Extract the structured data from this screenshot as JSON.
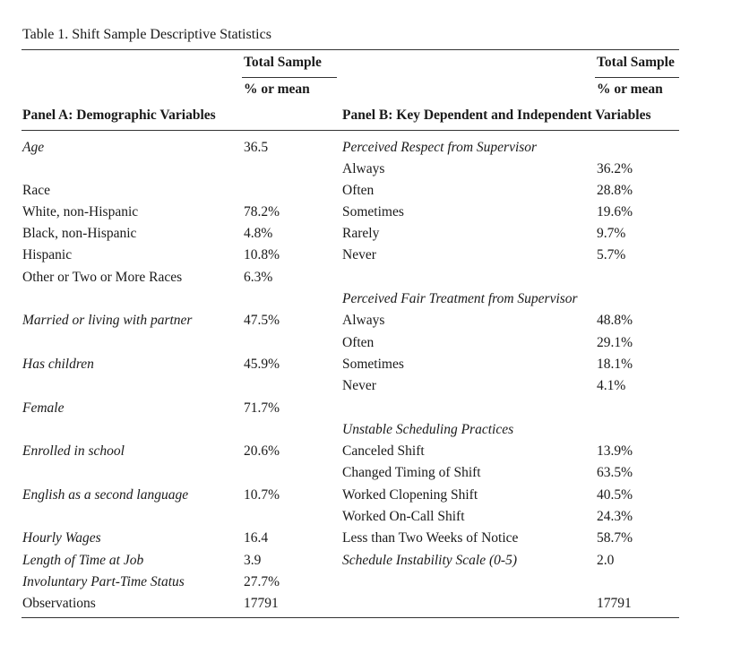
{
  "caption": "Table 1. Shift Sample Descriptive Statistics",
  "header": {
    "total_sample_left": "Total Sample",
    "pct_or_mean_left": "% or mean",
    "total_sample_right": "Total Sample",
    "pct_or_mean_right": "% or mean"
  },
  "panel_a": {
    "title": "Panel A: Demographic Variables",
    "rows": [
      {
        "label": "Age",
        "value": "36.5",
        "italic": true
      },
      {
        "label": "Race",
        "value": "",
        "italic": false
      },
      {
        "label": "White, non-Hispanic",
        "value": "78.2%",
        "italic": false
      },
      {
        "label": "Black, non-Hispanic",
        "value": "4.8%",
        "italic": false
      },
      {
        "label": "Hispanic",
        "value": "10.8%",
        "italic": false
      },
      {
        "label": "Other or Two or More Races",
        "value": "6.3%",
        "italic": false
      },
      {
        "label": "Married or living with partner",
        "value": "47.5%",
        "italic": true
      },
      {
        "label": "Has children",
        "value": "45.9%",
        "italic": true
      },
      {
        "label": "Female",
        "value": "71.7%",
        "italic": true
      },
      {
        "label": "Enrolled in school",
        "value": "20.6%",
        "italic": true
      },
      {
        "label": "English as a second language",
        "value": "10.7%",
        "italic": true
      },
      {
        "label": "Hourly Wages",
        "value": "16.4",
        "italic": true
      },
      {
        "label": "Length of Time at Job",
        "value": "3.9",
        "italic": true
      },
      {
        "label": "Involuntary Part-Time Status",
        "value": "27.7%",
        "italic": true
      },
      {
        "label": "Observations",
        "value": "17791",
        "italic": false
      }
    ]
  },
  "panel_b": {
    "title": "Panel B: Key Dependent and Independent Variables",
    "rows": [
      {
        "label": "Perceived Respect from Supervisor",
        "value": "",
        "italic": true
      },
      {
        "label": "Always",
        "value": "36.2%",
        "italic": false
      },
      {
        "label": "Often",
        "value": "28.8%",
        "italic": false
      },
      {
        "label": "Sometimes",
        "value": "19.6%",
        "italic": false
      },
      {
        "label": "Rarely",
        "value": "9.7%",
        "italic": false
      },
      {
        "label": "Never",
        "value": "5.7%",
        "italic": false
      },
      {
        "label": "Perceived Fair Treatment from Supervisor",
        "value": "",
        "italic": true
      },
      {
        "label": "Always",
        "value": "48.8%",
        "italic": false
      },
      {
        "label": "Often",
        "value": "29.1%",
        "italic": false
      },
      {
        "label": "Sometimes",
        "value": "18.1%",
        "italic": false
      },
      {
        "label": "Never",
        "value": "4.1%",
        "italic": false
      },
      {
        "label": "Unstable Scheduling Practices",
        "value": "",
        "italic": true
      },
      {
        "label": "Canceled Shift",
        "value": "13.9%",
        "italic": false
      },
      {
        "label": "Changed Timing of Shift",
        "value": "63.5%",
        "italic": false
      },
      {
        "label": "Worked Clopening Shift",
        "value": "40.5%",
        "italic": false
      },
      {
        "label": "Worked On-Call Shift",
        "value": "24.3%",
        "italic": false
      },
      {
        "label": "Less than Two Weeks of Notice",
        "value": "58.7%",
        "italic": false
      },
      {
        "label": "Schedule Instability Scale (0-5)",
        "value": "2.0",
        "italic": true
      },
      {
        "label": "",
        "value": "17791",
        "italic": false
      }
    ]
  }
}
